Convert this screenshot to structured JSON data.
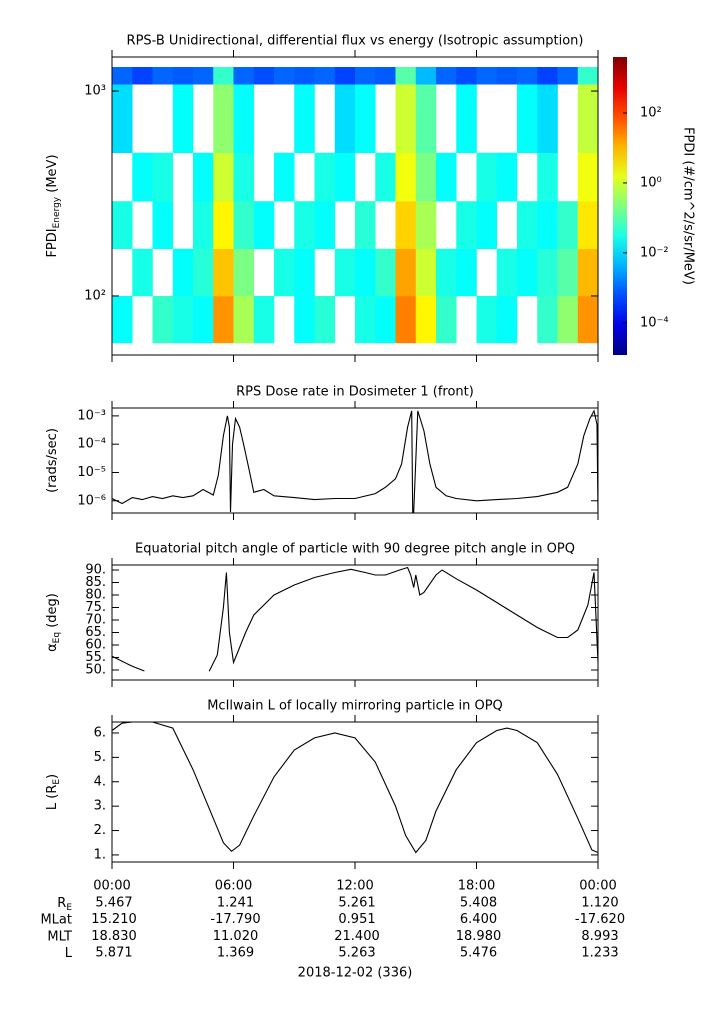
{
  "chart_data": [
    {
      "type": "heatmap",
      "title": "RPS-B  Unidirectional, differential flux vs energy (Isotropic assumption)",
      "ylabel": {
        "main": "FPDI",
        "sub": "Energy",
        "suffix": " (MeV)"
      },
      "colormap": "jet",
      "ylog": true,
      "xlim": [
        0,
        24
      ],
      "xticks": [
        0,
        6,
        12,
        18,
        24
      ],
      "ylim": [
        51.5,
        1466
      ],
      "yticks": [
        {
          "value": 100,
          "label": "10²"
        },
        {
          "value": 1000,
          "label": "10³"
        }
      ],
      "x_edges": [
        0,
        1,
        2,
        3,
        4,
        5,
        6,
        7,
        8,
        9,
        10,
        11,
        12,
        13,
        14,
        15,
        16,
        17,
        18,
        19,
        20,
        21,
        22,
        23,
        24
      ],
      "y_edges": [
        59,
        100,
        170,
        290,
        500,
        1080,
        1310
      ],
      "values": [
        [
          0.02,
          null,
          0.05,
          0.03,
          0.02,
          20,
          0.5,
          0.03,
          null,
          0.02,
          0.04,
          null,
          0.03,
          0.02,
          30,
          3,
          0.05,
          null,
          0.03,
          0.02,
          null,
          0.05,
          0.3,
          20
        ],
        [
          null,
          0.03,
          null,
          0.02,
          0.04,
          8,
          0.2,
          null,
          0.03,
          0.02,
          null,
          0.03,
          0.02,
          0.05,
          15,
          1,
          0.03,
          0.02,
          null,
          0.03,
          0.02,
          0.04,
          0.1,
          10
        ],
        [
          0.03,
          null,
          0.02,
          null,
          0.03,
          3,
          0.05,
          0.02,
          null,
          0.03,
          0.02,
          null,
          0.04,
          null,
          6,
          0.5,
          null,
          0.03,
          0.02,
          null,
          0.03,
          0.02,
          0.05,
          4
        ],
        [
          null,
          0.02,
          0.03,
          null,
          0.02,
          1,
          0.03,
          null,
          0.02,
          null,
          0.03,
          0.02,
          null,
          0.03,
          2,
          0.2,
          0.02,
          null,
          0.03,
          0.02,
          null,
          0.03,
          null,
          2
        ],
        [
          0.01,
          null,
          null,
          0.02,
          null,
          0.3,
          0.02,
          null,
          null,
          0.02,
          null,
          0.01,
          0.02,
          null,
          1,
          0.1,
          null,
          0.02,
          null,
          null,
          0.02,
          0.01,
          null,
          0.8
        ],
        [
          0.001,
          0.0005,
          0.001,
          0.0008,
          0.001,
          0.05,
          0.001,
          0.0006,
          0.001,
          0.0008,
          0.001,
          0.0005,
          0.001,
          0.0008,
          0.1,
          0.005,
          0.001,
          0.0006,
          0.001,
          0.0008,
          0.001,
          0.0005,
          0.001,
          0.05
        ]
      ],
      "colorbar": {
        "label": "FPDI (#/cm^2/s/sr/MeV)",
        "lim": [
          1.2e-05,
          4000
        ],
        "ticks": [
          {
            "value": 0.0001,
            "label": "10⁻⁴"
          },
          {
            "value": 0.01,
            "label": "10⁻²"
          },
          {
            "value": 1,
            "label": "10⁰"
          },
          {
            "value": 100,
            "label": "10²"
          }
        ]
      }
    },
    {
      "type": "line",
      "title": "RPS  Dose rate in Dosimeter 1 (front)",
      "ylabel": {
        "main": "(rads/sec)"
      },
      "ylog": true,
      "color": "#000000",
      "xlim": [
        0,
        24
      ],
      "xticks": [
        0,
        6,
        12,
        18,
        24
      ],
      "ylim": [
        3.7e-07,
        0.0019
      ],
      "yticks": [
        {
          "value": 1e-06,
          "label": "10⁻⁶"
        },
        {
          "value": 1e-05,
          "label": "10⁻⁵"
        },
        {
          "value": 0.0001,
          "label": "10⁻⁴"
        },
        {
          "value": 0.001,
          "label": "10⁻³"
        }
      ],
      "x": [
        0,
        0.5,
        1,
        1.5,
        2,
        2.5,
        3,
        3.5,
        4,
        4.5,
        5,
        5.25,
        5.5,
        5.7,
        5.8,
        5.85,
        5.95,
        6.1,
        6.3,
        6.5,
        6.8,
        7,
        7.5,
        8,
        9,
        10,
        11,
        12,
        13,
        13.5,
        14,
        14.3,
        14.6,
        14.8,
        14.85,
        14.9,
        15.1,
        15.4,
        15.7,
        16,
        16.5,
        17,
        18,
        19,
        20,
        21,
        22,
        22.5,
        23,
        23.3,
        23.6,
        23.8,
        23.95,
        24
      ],
      "values": [
        1.2e-06,
        8e-07,
        1.3e-06,
        1.1e-06,
        1.4e-06,
        1.2e-06,
        1.5e-06,
        1.3e-06,
        1.5e-06,
        2.5e-06,
        1.6e-06,
        8e-06,
        0.0002,
        0.001,
        0.0004,
        4e-07,
        0.0001,
        0.0008,
        0.0004,
        0.0001,
        1e-05,
        2e-06,
        2.5e-06,
        1.5e-06,
        1.3e-06,
        1.1e-06,
        1.2e-06,
        1.2e-06,
        1.8e-06,
        3e-06,
        6e-06,
        2e-05,
        0.0004,
        0.0015,
        4e-07,
        4e-07,
        0.0015,
        0.0003,
        2e-05,
        3e-06,
        1.5e-06,
        1.2e-06,
        1e-06,
        1.1e-06,
        1.2e-06,
        1.4e-06,
        2e-06,
        3e-06,
        2e-05,
        0.0002,
        0.0008,
        0.0015,
        0.0005,
        4e-07
      ]
    },
    {
      "type": "line",
      "title": "Equatorial pitch angle of particle with 90 degree pitch angle in OPQ",
      "ylabel": {
        "main": "α",
        "sub": "Eq",
        "suffix": " (deg)"
      },
      "ylog": false,
      "color": "#000000",
      "xlim": [
        0,
        24
      ],
      "xticks": [
        0,
        6,
        12,
        18,
        24
      ],
      "ylim": [
        46,
        92
      ],
      "yticks": [
        {
          "value": 50,
          "label": "50."
        },
        {
          "value": 55,
          "label": "55."
        },
        {
          "value": 60,
          "label": "60."
        },
        {
          "value": 65,
          "label": "65."
        },
        {
          "value": 70,
          "label": "70."
        },
        {
          "value": 75,
          "label": "75."
        },
        {
          "value": 80,
          "label": "80."
        },
        {
          "value": 85,
          "label": "85."
        },
        {
          "value": 90,
          "label": "90."
        }
      ],
      "x": [
        0,
        0.5,
        1,
        1.6,
        2,
        3,
        4,
        4.8,
        5.2,
        5.5,
        5.65,
        5.8,
        6,
        6.2,
        6.6,
        7,
        8,
        9,
        10,
        11,
        11.8,
        12.5,
        13,
        13.5,
        14.2,
        14.6,
        14.75,
        14.9,
        15,
        15.2,
        15.4,
        16,
        16.3,
        17,
        18,
        19,
        20,
        21,
        22,
        22.5,
        23,
        23.5,
        23.8,
        24
      ],
      "values": [
        55.5,
        53.5,
        51.5,
        49.6,
        null,
        null,
        null,
        49.5,
        56,
        75,
        89,
        65,
        53,
        57,
        65,
        72,
        80,
        84,
        87,
        89,
        90.3,
        89,
        88,
        88,
        90,
        91,
        88,
        83,
        88,
        80,
        81,
        88,
        90,
        86.5,
        82,
        77,
        72,
        67,
        63,
        63,
        66,
        76,
        89,
        53
      ]
    },
    {
      "type": "line",
      "title": "McIlwain L of locally mirroring particle in OPQ",
      "ylabel": {
        "main": "L (R",
        "sub": "E",
        "suffix": ")"
      },
      "ylog": false,
      "color": "#000000",
      "xlim": [
        0,
        24
      ],
      "xticks": [
        {
          "value": 0,
          "label": "00:00"
        },
        {
          "value": 6,
          "label": "06:00"
        },
        {
          "value": 12,
          "label": "12:00"
        },
        {
          "value": 18,
          "label": "18:00"
        },
        {
          "value": 24,
          "label": "00:00"
        }
      ],
      "ylim": [
        0.71,
        6.45
      ],
      "yticks": [
        {
          "value": 1,
          "label": "1."
        },
        {
          "value": 2,
          "label": "2."
        },
        {
          "value": 3,
          "label": "3."
        },
        {
          "value": 4,
          "label": "4."
        },
        {
          "value": 5,
          "label": "5."
        },
        {
          "value": 6,
          "label": "6."
        }
      ],
      "x": [
        0,
        0.5,
        1,
        2,
        3,
        4,
        5,
        5.5,
        5.9,
        6.3,
        7,
        8,
        9,
        10,
        11,
        12,
        13,
        14,
        14.5,
        15,
        15.5,
        16,
        17,
        18,
        19,
        19.5,
        20,
        21,
        22,
        23,
        23.7,
        24
      ],
      "values": [
        6.1,
        6.4,
        6.45,
        6.45,
        6.2,
        4.5,
        2.5,
        1.5,
        1.15,
        1.4,
        2.6,
        4.2,
        5.3,
        5.8,
        6.0,
        5.8,
        4.8,
        3.0,
        1.8,
        1.1,
        1.6,
        2.8,
        4.5,
        5.6,
        6.1,
        6.2,
        6.1,
        5.6,
        4.3,
        2.5,
        1.2,
        1.1
      ]
    }
  ],
  "ephemeris": {
    "row_labels": [
      {
        "main": "R",
        "sub": "E"
      },
      {
        "main": "MLat"
      },
      {
        "main": "MLT"
      },
      {
        "main": "L"
      }
    ],
    "rows": [
      [
        "5.467",
        "1.241",
        "5.261",
        "5.408",
        "1.120"
      ],
      [
        "15.210",
        "-17.790",
        "0.951",
        "6.400",
        "-17.620"
      ],
      [
        "18.830",
        "11.020",
        "21.400",
        "18.980",
        "8.993"
      ],
      [
        "5.871",
        "1.369",
        "5.263",
        "5.476",
        "1.233"
      ]
    ],
    "date": "2018-12-02 (336)"
  }
}
